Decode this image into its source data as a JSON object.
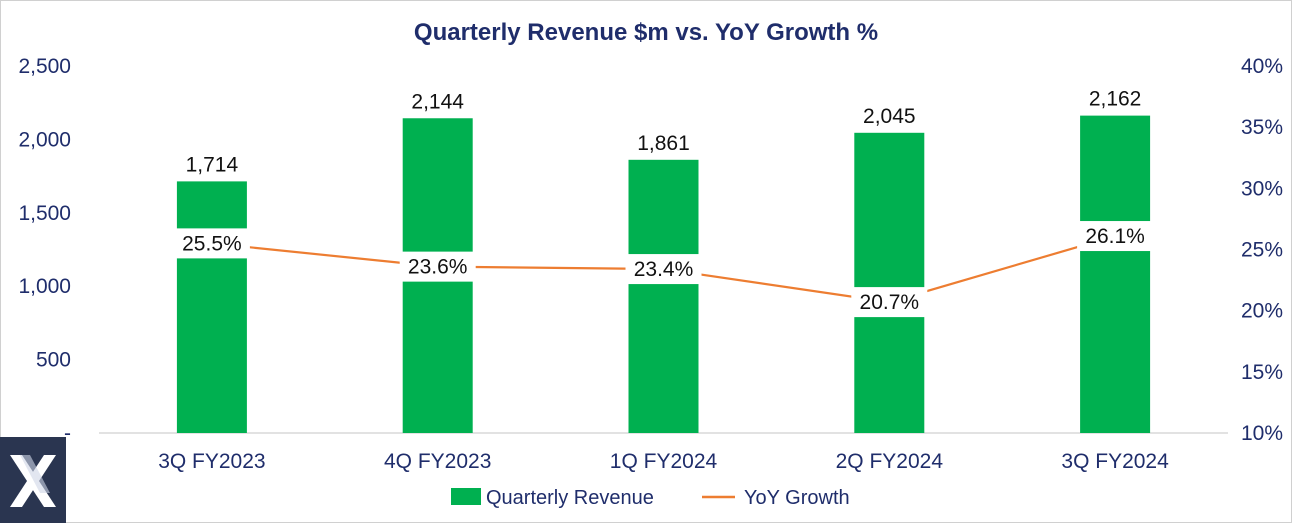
{
  "chart_data": {
    "type": "bar+line",
    "title": "Quarterly  Revenue $m vs. YoY Growth %",
    "categories": [
      "3Q FY2023",
      "4Q FY2023",
      "1Q FY2024",
      "2Q FY2024",
      "3Q FY2024"
    ],
    "series": [
      {
        "name": "Quarterly Revenue",
        "type": "bar",
        "axis": "left",
        "values": [
          1714,
          2144,
          1861,
          2045,
          2162
        ],
        "labels": [
          "1,714",
          "2,144",
          "1,861",
          "2,045",
          "2,162"
        ]
      },
      {
        "name": "YoY Growth",
        "type": "line",
        "axis": "right",
        "values": [
          25.5,
          23.6,
          23.4,
          20.7,
          26.1
        ],
        "labels": [
          "25.5%",
          "23.6%",
          "23.4%",
          "20.7%",
          "26.1%"
        ]
      }
    ],
    "left_axis": {
      "ylim": [
        0,
        2500
      ],
      "ticks": [
        0,
        500,
        1000,
        1500,
        2000,
        2500
      ],
      "tick_labels": [
        "-",
        "500",
        "1,000",
        "1,500",
        "2,000",
        "2,500"
      ]
    },
    "right_axis": {
      "ylim": [
        10,
        40
      ],
      "ticks": [
        10,
        15,
        20,
        25,
        30,
        35,
        40
      ],
      "tick_labels": [
        "10%",
        "15%",
        "20%",
        "25%",
        "30%",
        "35%",
        "40%"
      ]
    },
    "legend": {
      "position": "bottom",
      "entries": [
        "Quarterly Revenue",
        "YoY Growth"
      ]
    },
    "grid": false,
    "colors": {
      "bar": "#00b050",
      "line": "#ed7d31",
      "text": "#1f2d6b",
      "axis": "#d9d9d9"
    }
  },
  "logo": {
    "name": "x-logo-icon"
  }
}
